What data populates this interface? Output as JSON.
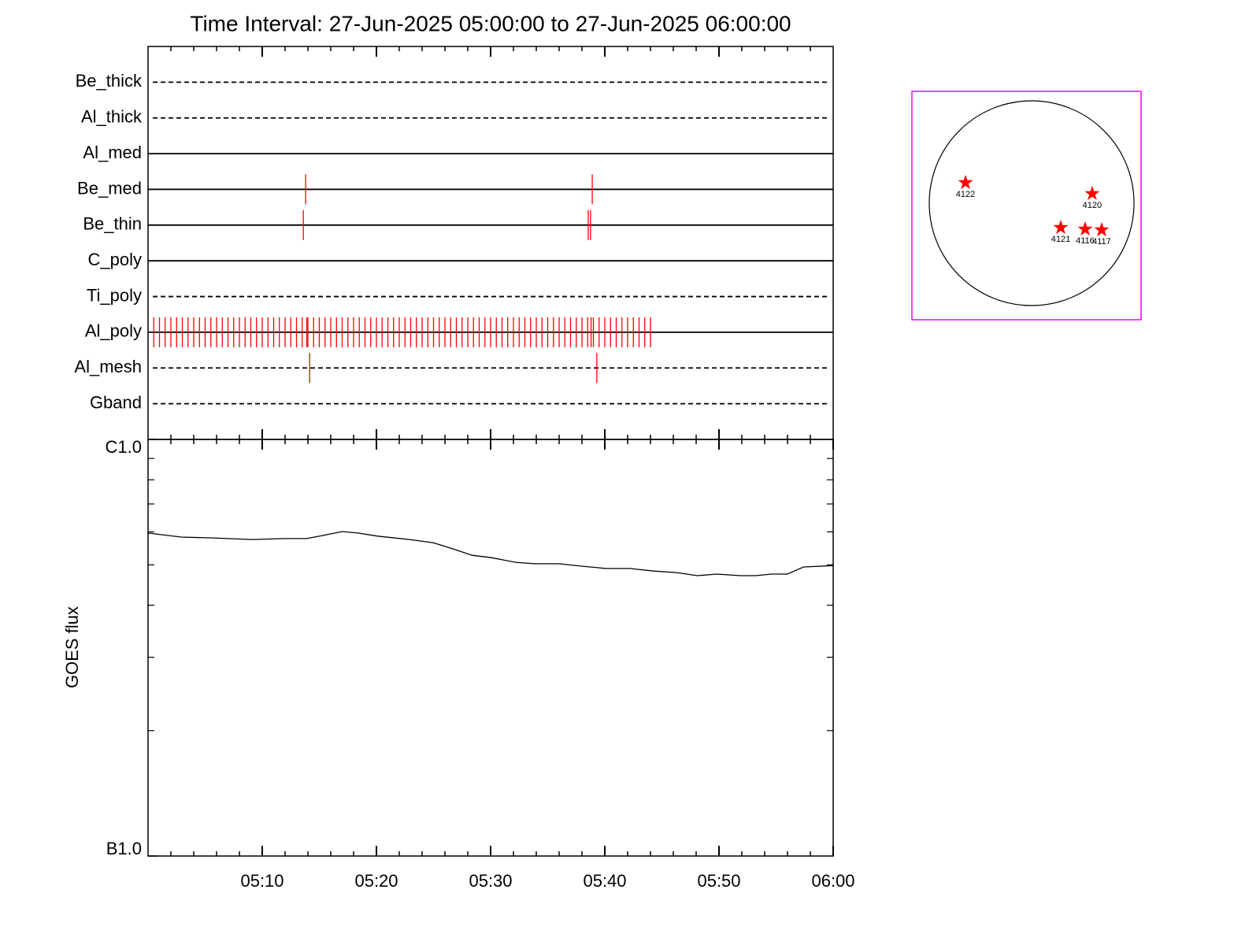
{
  "chart_data": [
    {
      "type": "timeline",
      "title": "Time Interval: 27-Jun-2025 05:00:00 to 27-Jun-2025 06:00:00",
      "color": "#ff0000",
      "series": [
        {
          "name": "Be_thick",
          "linestyle": "dashed",
          "x": []
        },
        {
          "name": "Al_thick",
          "linestyle": "dashed",
          "x": []
        },
        {
          "name": "Al_med",
          "linestyle": "solid",
          "x": []
        },
        {
          "name": "Be_med",
          "linestyle": "solid",
          "x": [
            13.8,
            38.9
          ]
        },
        {
          "name": "Be_thin",
          "linestyle": "solid",
          "x": [
            13.6,
            38.55,
            38.75
          ]
        },
        {
          "name": "C_poly",
          "linestyle": "solid",
          "x": []
        },
        {
          "name": "Ti_poly",
          "linestyle": "dashed",
          "x": []
        },
        {
          "name": "Al_poly",
          "linestyle": "solid",
          "x": [
            0.5,
            1,
            1.5,
            2,
            2.5,
            3,
            3.5,
            4,
            4.5,
            5,
            5.5,
            6,
            6.5,
            7,
            7.5,
            8,
            8.5,
            9,
            9.5,
            10,
            10.5,
            11,
            11.5,
            12,
            12.5,
            13,
            13.5,
            13.9,
            14,
            14.5,
            15,
            15.5,
            16,
            16.5,
            17,
            17.5,
            18,
            18.5,
            19,
            19.5,
            20,
            20.5,
            21,
            21.5,
            22,
            22.5,
            23,
            23.5,
            24,
            24.5,
            25,
            25.5,
            26,
            26.5,
            27,
            27.5,
            28,
            28.5,
            29,
            29.5,
            30,
            30.5,
            31,
            31.5,
            32,
            32.5,
            33,
            33.5,
            34,
            34.5,
            35,
            35.5,
            36,
            36.5,
            37,
            37.5,
            38,
            38.5,
            38.8,
            39,
            39.5,
            40,
            40.5,
            41,
            41.5,
            42,
            42.5,
            43,
            43.5,
            44
          ]
        },
        {
          "name": "Al_mesh",
          "linestyle": "dashed",
          "x": [
            14.15,
            39.3
          ]
        },
        {
          "name": "Gband",
          "linestyle": "dashed",
          "x": []
        }
      ],
      "xlim": [
        0,
        60
      ],
      "xticks": [
        10,
        20,
        30,
        40,
        50
      ],
      "xminorticks": [
        2,
        4,
        6,
        8,
        12,
        14,
        16,
        18,
        22,
        24,
        26,
        28,
        32,
        34,
        36,
        38,
        42,
        44,
        46,
        48,
        52,
        54,
        56,
        58
      ]
    },
    {
      "type": "line",
      "ylabel": "GOES flux",
      "color": "#000000",
      "log": true,
      "x": [
        0,
        2.9,
        5.7,
        9.1,
        11.9,
        13.9,
        15.3,
        17,
        18.4,
        20.1,
        22.9,
        25,
        26.7,
        28.4,
        30.1,
        32.2,
        33.9,
        36,
        38.1,
        40.1,
        42.2,
        44.3,
        46.3,
        48.1,
        49.8,
        51.9,
        53.2,
        54.6,
        56,
        57.4,
        60
      ],
      "values": [
        5.96e-07,
        5.83e-07,
        5.8e-07,
        5.75e-07,
        5.78e-07,
        5.78e-07,
        5.88e-07,
        6.01e-07,
        5.96e-07,
        5.86e-07,
        5.75e-07,
        5.65e-07,
        5.46e-07,
        5.27e-07,
        5.2e-07,
        5.07e-07,
        5.03e-07,
        5.03e-07,
        4.96e-07,
        4.9e-07,
        4.9e-07,
        4.83e-07,
        4.79e-07,
        4.71e-07,
        4.75e-07,
        4.71e-07,
        4.71e-07,
        4.75e-07,
        4.75e-07,
        4.94e-07,
        4.98e-07
      ],
      "xlim": [
        0,
        60
      ],
      "xticks": [
        {
          "value": 10,
          "label": "05:10"
        },
        {
          "value": 20,
          "label": "05:20"
        },
        {
          "value": 30,
          "label": "05:30"
        },
        {
          "value": 40,
          "label": "05:40"
        },
        {
          "value": 50,
          "label": "05:50"
        },
        {
          "value": 60,
          "label": "06:00"
        }
      ],
      "xminorticks": [
        2,
        4,
        6,
        8,
        12,
        14,
        16,
        18,
        22,
        24,
        26,
        28,
        32,
        34,
        36,
        38,
        42,
        44,
        46,
        48,
        52,
        54,
        56,
        58
      ],
      "ylim": [
        1e-07,
        1e-06
      ],
      "yticks": [
        {
          "value": 1e-06,
          "label": "C1.0"
        },
        {
          "value": 1e-07,
          "label": "B1.0"
        }
      ],
      "yminorticks": [
        2e-07,
        3e-07,
        4e-07,
        5e-07,
        6e-07,
        7e-07,
        8e-07,
        9e-07
      ]
    },
    {
      "type": "scatter",
      "color": "#ff0000",
      "frame_color": "#ff00ff",
      "labels": [
        "4122",
        "4120",
        "4121",
        "4116",
        "4117"
      ],
      "x": [
        -620,
        568,
        273,
        502,
        657
      ],
      "y": [
        192,
        89,
        -229,
        -244,
        -251
      ]
    }
  ]
}
